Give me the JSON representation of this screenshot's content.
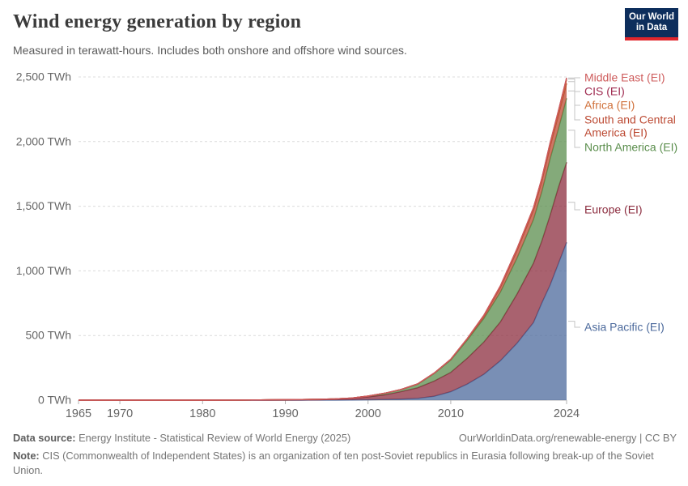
{
  "header": {
    "title": "Wind energy generation by region",
    "subtitle": "Measured in terawatt-hours. Includes both onshore and offshore wind sources."
  },
  "logo": {
    "line1": "Our World",
    "line2": "in Data",
    "bg_color": "#0d2e5c",
    "accent_color": "#e0262c"
  },
  "chart_data": {
    "type": "area",
    "stacked": true,
    "title": "Wind energy generation by region",
    "subtitle": "Measured in terawatt-hours. Includes both onshore and offshore wind sources.",
    "unit": "TWh",
    "xlim": [
      1965,
      2024
    ],
    "ylim": [
      0,
      2500
    ],
    "grid": "dashed-horizontal",
    "legend_position": "right",
    "y_ticks": [
      0,
      500,
      1000,
      1500,
      2000,
      2500
    ],
    "y_tick_labels": [
      "0 TWh",
      "500 TWh",
      "1,000 TWh",
      "1,500 TWh",
      "2,000 TWh",
      "2,500 TWh"
    ],
    "x_ticks": [
      1965,
      1970,
      1980,
      1990,
      2000,
      2010,
      2024
    ],
    "x_tick_labels": [
      "1965",
      "1970",
      "1980",
      "1990",
      "2000",
      "2010",
      "2024"
    ],
    "x": [
      1965,
      1970,
      1975,
      1980,
      1985,
      1988,
      1990,
      1992,
      1994,
      1996,
      1998,
      2000,
      2002,
      2004,
      2006,
      2008,
      2010,
      2012,
      2014,
      2016,
      2018,
      2020,
      2021,
      2022,
      2023,
      2024
    ],
    "stack_order": "bottom-to-top",
    "series": [
      {
        "name": "asia-pacific",
        "label": "Asia Pacific (EI)",
        "color": "#4C6A9C",
        "values": [
          0,
          0,
          0,
          0,
          0,
          0,
          0.1,
          0.2,
          0.4,
          0.9,
          1.5,
          3,
          5,
          8,
          14,
          30,
          65,
          125,
          200,
          305,
          440,
          600,
          750,
          890,
          1055,
          1220
        ]
      },
      {
        "name": "europe",
        "label": "Europe (EI)",
        "color": "#8C2D3F",
        "values": [
          0,
          0,
          0,
          0,
          0.1,
          0.3,
          0.8,
          1.5,
          3,
          5,
          11,
          22,
          36,
          58,
          82,
          118,
          150,
          200,
          250,
          300,
          380,
          460,
          480,
          540,
          590,
          620
        ]
      },
      {
        "name": "north-america",
        "label": "North America (EI)",
        "color": "#5B8E4D",
        "values": [
          0,
          0,
          0,
          0.1,
          0.6,
          2,
          2.8,
          3,
          3.3,
          3.2,
          3.5,
          5.7,
          11,
          15,
          27,
          58,
          95,
          140,
          182,
          230,
          278,
          338,
          380,
          435,
          450,
          495
        ]
      },
      {
        "name": "south-central-america",
        "label": "South and Central America (EI)",
        "label_lines": [
          "South and Central",
          "America (EI)"
        ],
        "color": "#BC4A33",
        "values": [
          0,
          0,
          0,
          0,
          0,
          0,
          0,
          0,
          0.1,
          0.2,
          0.4,
          0.7,
          1,
          1.5,
          2,
          2.5,
          4,
          9,
          18,
          38,
          58,
          72,
          81,
          96,
          107,
          115
        ]
      },
      {
        "name": "africa",
        "label": "Africa (EI)",
        "color": "#D0713B",
        "values": [
          0,
          0,
          0,
          0,
          0,
          0,
          0,
          0,
          0,
          0.1,
          0.2,
          0.2,
          0.3,
          0.5,
          1,
          1.5,
          2.5,
          3,
          6,
          10,
          14,
          16,
          18,
          20,
          24,
          28
        ]
      },
      {
        "name": "cis",
        "label": "CIS (EI)",
        "color": "#9F2B50",
        "values": [
          0,
          0,
          0,
          0,
          0,
          0,
          0,
          0,
          0,
          0,
          0,
          0,
          0,
          0,
          0,
          0.1,
          0.1,
          0.2,
          0.2,
          0.3,
          0.5,
          2,
          4,
          7,
          9,
          12
        ]
      },
      {
        "name": "middle-east",
        "label": "Middle East (EI)",
        "color": "#CE5C5C",
        "values": [
          0,
          0,
          0,
          0,
          0,
          0,
          0,
          0,
          0,
          0,
          0,
          0,
          0,
          0,
          0,
          0.1,
          0.2,
          0.3,
          0.4,
          0.5,
          0.7,
          1,
          1.2,
          1.5,
          2,
          4
        ]
      }
    ]
  },
  "footer": {
    "data_source_label": "Data source:",
    "data_source_text": "Energy Institute - Statistical Review of World Energy (2025)",
    "attribution": "OurWorldinData.org/renewable-energy | CC BY",
    "note_label": "Note:",
    "note_text": "CIS (Commonwealth of Independent States) is an organization of ten post-Soviet republics in Eurasia following break-up of the Soviet Union."
  }
}
